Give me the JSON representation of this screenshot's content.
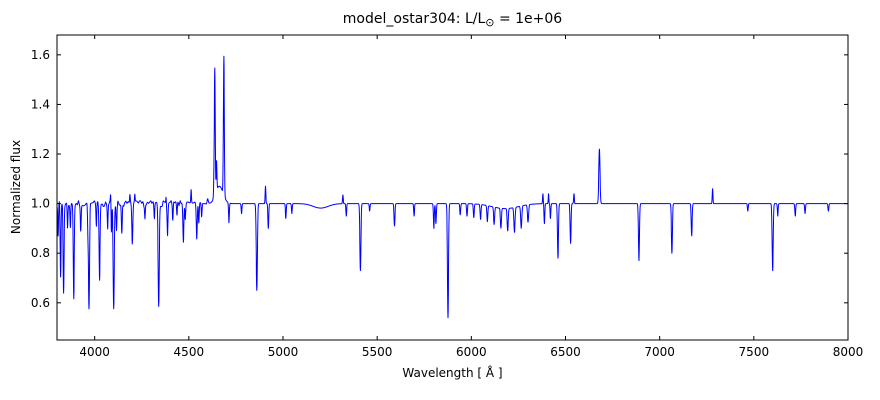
{
  "chart_data": {
    "type": "line",
    "title": "model_ostar304: L/L⊙ = 1e+06",
    "title_parts": {
      "prefix": "model_ostar304: L/L",
      "sub": "⊙",
      "suffix": " = 1e+06"
    },
    "xlabel": "Wavelength [ Å ]",
    "ylabel": "Normalized flux",
    "xlim": [
      3800,
      8000
    ],
    "ylim": [
      0.45,
      1.68
    ],
    "xtick_values": [
      4000,
      4500,
      5000,
      5500,
      6000,
      6500,
      7000,
      7500,
      8000
    ],
    "xtick_labels": [
      "4000",
      "4500",
      "5000",
      "5500",
      "6000",
      "6500",
      "7000",
      "7500",
      "8000"
    ],
    "ytick_values": [
      0.6,
      0.8,
      1.0,
      1.2,
      1.4,
      1.6
    ],
    "ytick_labels": [
      "0.6",
      "0.8",
      "1.0",
      "1.2",
      "1.4",
      "1.6"
    ],
    "line_color": "#0000ff",
    "axis_color": "#000000",
    "background_color": "#ffffff",
    "grid": false,
    "legend": "none",
    "continuum": 1.0,
    "noise": {
      "range": [
        3800,
        4650
      ],
      "fade_start": 4450,
      "amplitude": 0.012,
      "grid_step": 6,
      "seed": 7
    },
    "features_format": [
      "center_angstrom",
      "amplitude_rel_continuum",
      "sigma_angstrom"
    ],
    "features": [
      [
        3806,
        -0.12,
        2.0
      ],
      [
        3819,
        -0.3,
        2.2
      ],
      [
        3835,
        -0.36,
        2.5
      ],
      [
        3856,
        -0.1,
        2.0
      ],
      [
        3871,
        -0.1,
        2.0
      ],
      [
        3889,
        -0.38,
        2.5
      ],
      [
        3926,
        -0.12,
        2.2
      ],
      [
        3964,
        -0.1,
        2.0
      ],
      [
        3970,
        -0.42,
        2.8
      ],
      [
        4009,
        -0.1,
        2.0
      ],
      [
        4026,
        -0.3,
        2.5
      ],
      [
        4069,
        -0.1,
        2.0
      ],
      [
        4085,
        0.04,
        1.5
      ],
      [
        4089,
        -0.12,
        2.0
      ],
      [
        4101,
        -0.42,
        3.0
      ],
      [
        4116,
        -0.1,
        2.0
      ],
      [
        4144,
        -0.12,
        2.2
      ],
      [
        4187,
        0.03,
        1.5
      ],
      [
        4200,
        -0.16,
        2.5
      ],
      [
        4213,
        0.03,
        1.5
      ],
      [
        4267,
        -0.06,
        2.0
      ],
      [
        4317,
        -0.06,
        2.0
      ],
      [
        4340,
        -0.41,
        3.0
      ],
      [
        4379,
        0.03,
        1.5
      ],
      [
        4387,
        -0.13,
        2.2
      ],
      [
        4415,
        -0.07,
        2.0
      ],
      [
        4437,
        -0.05,
        2.0
      ],
      [
        4471,
        -0.15,
        2.5
      ],
      [
        4481,
        -0.06,
        2.0
      ],
      [
        4512,
        0.05,
        1.5
      ],
      [
        4542,
        -0.14,
        2.5
      ],
      [
        4553,
        -0.08,
        2.0
      ],
      [
        4568,
        -0.05,
        2.0
      ],
      [
        4600,
        0.02,
        3.0
      ],
      [
        4634,
        0.1,
        2.0
      ],
      [
        4638,
        0.5,
        2.2
      ],
      [
        4647,
        0.12,
        2.0
      ],
      [
        4662,
        0.07,
        20.0
      ],
      [
        4686,
        0.56,
        2.4
      ],
      [
        4713,
        -0.08,
        2.0
      ],
      [
        4780,
        -0.04,
        2.0
      ],
      [
        4861,
        -0.35,
        3.0
      ],
      [
        4907,
        0.07,
        1.8
      ],
      [
        4922,
        -0.1,
        2.2
      ],
      [
        5015,
        -0.06,
        2.0
      ],
      [
        5047,
        -0.04,
        2.0
      ],
      [
        5200,
        -0.018,
        40.0
      ],
      [
        5318,
        0.035,
        1.8
      ],
      [
        5336,
        -0.05,
        2.0
      ],
      [
        5411,
        -0.27,
        2.8
      ],
      [
        5460,
        -0.03,
        2.0
      ],
      [
        5592,
        -0.09,
        2.5
      ],
      [
        5696,
        -0.05,
        2.0
      ],
      [
        5801,
        -0.1,
        2.2
      ],
      [
        5812,
        -0.08,
        2.2
      ],
      [
        5876,
        -0.46,
        2.8
      ],
      [
        5941,
        -0.045,
        2.2
      ],
      [
        5977,
        -0.05,
        2.2
      ],
      [
        6013,
        -0.055,
        2.3
      ],
      [
        6049,
        -0.06,
        2.4
      ],
      [
        6085,
        -0.065,
        2.5
      ],
      [
        6121,
        -0.07,
        2.6
      ],
      [
        6157,
        -0.08,
        2.7
      ],
      [
        6193,
        -0.09,
        2.8
      ],
      [
        6229,
        -0.1,
        3.0
      ],
      [
        6265,
        -0.09,
        3.0
      ],
      [
        6301,
        -0.07,
        3.0
      ],
      [
        6180,
        -0.02,
        70.0
      ],
      [
        6380,
        0.04,
        1.6
      ],
      [
        6388,
        -0.08,
        2.0
      ],
      [
        6410,
        0.04,
        1.6
      ],
      [
        6420,
        -0.06,
        2.0
      ],
      [
        6460,
        -0.22,
        2.6
      ],
      [
        6527,
        -0.16,
        2.5
      ],
      [
        6545,
        0.04,
        1.8
      ],
      [
        6680,
        0.22,
        3.2
      ],
      [
        6890,
        -0.23,
        2.6
      ],
      [
        7065,
        -0.2,
        2.6
      ],
      [
        7170,
        -0.13,
        2.5
      ],
      [
        7281,
        0.06,
        1.8
      ],
      [
        7468,
        -0.03,
        2.0
      ],
      [
        7600,
        -0.27,
        2.8
      ],
      [
        7627,
        -0.05,
        2.0
      ],
      [
        7720,
        -0.05,
        2.2
      ],
      [
        7772,
        -0.04,
        2.2
      ],
      [
        7896,
        -0.03,
        2.2
      ]
    ]
  }
}
